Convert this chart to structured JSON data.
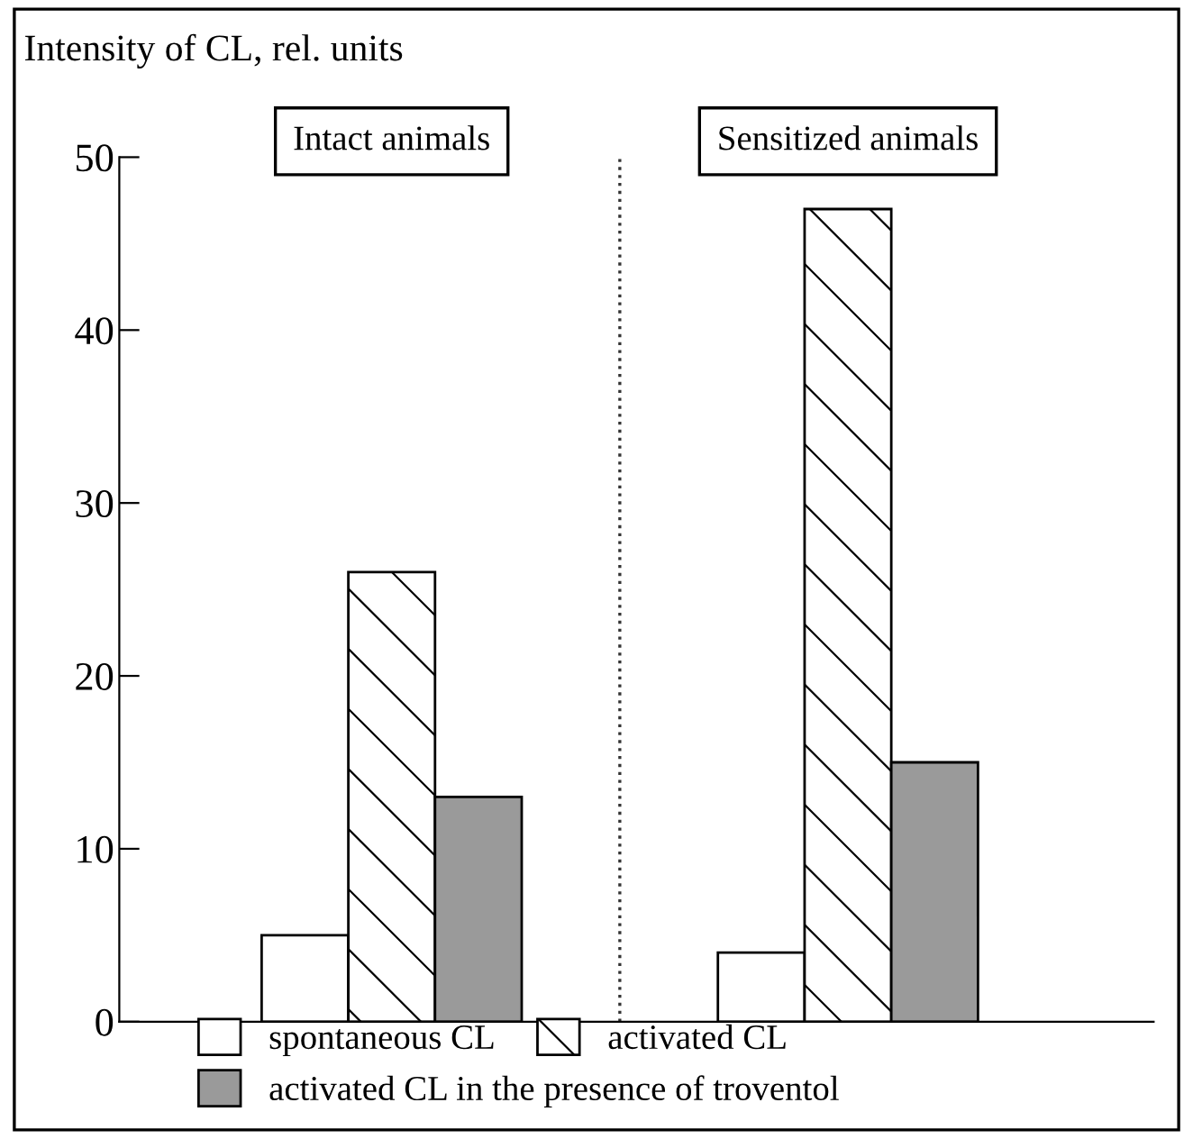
{
  "chart_data": {
    "type": "bar",
    "ylabel": "Intensity of CL, rel. units",
    "categories": [
      "Intact animals",
      "Sensitized animals"
    ],
    "series": [
      {
        "name": "spontaneous CL",
        "color": "#ffffff",
        "values": [
          5,
          4
        ]
      },
      {
        "name": "activated CL",
        "color": "#ffffff",
        "values": [
          26,
          47
        ]
      },
      {
        "name": "activated CL in the presence of troventol",
        "color": "#9a9a9a",
        "values": [
          13,
          15
        ]
      }
    ],
    "ylim": [
      0,
      50
    ],
    "yticks": [
      0,
      10,
      20,
      30,
      40,
      50
    ],
    "grid": false,
    "legend": "bottom",
    "tick_labels": "y"
  }
}
